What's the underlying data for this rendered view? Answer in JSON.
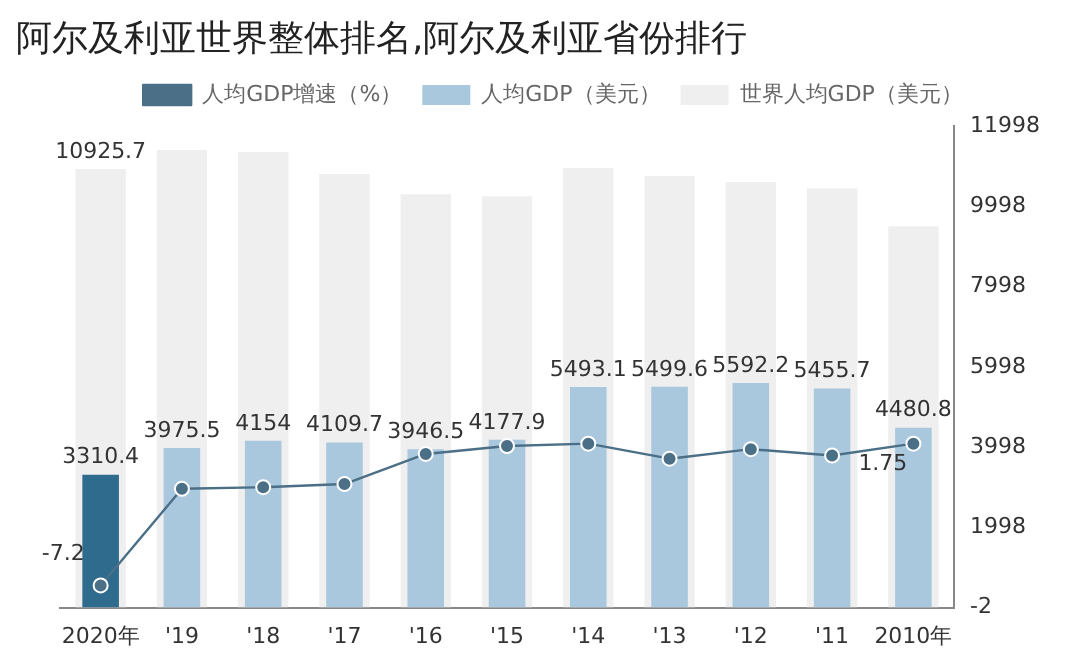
{
  "chart_data": {
    "type": "bar",
    "title": "阿尔及利亚世界整体排名,阿尔及利亚省份排行",
    "categories": [
      "2020年",
      "'19",
      "'18",
      "'17",
      "'16",
      "'15",
      "'14",
      "'13",
      "'12",
      "'11",
      "2010年"
    ],
    "series": [
      {
        "name": "世界人均GDP（美元）",
        "color": "#efefef",
        "values": [
          10925.7,
          11400,
          11350,
          10800,
          10300,
          10250,
          10950,
          10750,
          10600,
          10450,
          9500
        ],
        "value_labels": [
          "10925.7",
          null,
          null,
          null,
          null,
          null,
          null,
          null,
          null,
          null,
          null
        ]
      },
      {
        "name": "人均GDP（美元）",
        "color": "#a9c8de",
        "colors": [
          "#2f6b8c",
          "#a9c8de",
          "#a9c8de",
          "#a9c8de",
          "#a9c8de",
          "#a9c8de",
          "#a9c8de",
          "#a9c8de",
          "#a9c8de",
          "#a9c8de",
          "#a9c8de"
        ],
        "values": [
          3310.4,
          3975.5,
          4154.0,
          4109.7,
          3946.5,
          4177.9,
          5493.1,
          5499.6,
          5592.2,
          5455.7,
          4480.8
        ],
        "data_labels": true
      },
      {
        "name": "人均GDP增速（%）",
        "type": "line",
        "axis": "y2",
        "color": "#4a6f86",
        "values": [
          -7.2,
          -1.1,
          -1.0,
          -0.8,
          1.1,
          1.6,
          1.75,
          0.8,
          1.4,
          1.0,
          1.75
        ],
        "value_labels": [
          "-7.2",
          null,
          null,
          null,
          null,
          null,
          null,
          null,
          null,
          null,
          "1.75"
        ]
      }
    ],
    "ylim": [
      -2,
      11998
    ],
    "yticks": [
      -2,
      1998,
      3998,
      5998,
      7998,
      9998,
      11998
    ],
    "y2lim": [
      -8.6,
      21.8
    ],
    "grid": false,
    "legend": "top",
    "marker": "circle",
    "line_style": "solid"
  }
}
